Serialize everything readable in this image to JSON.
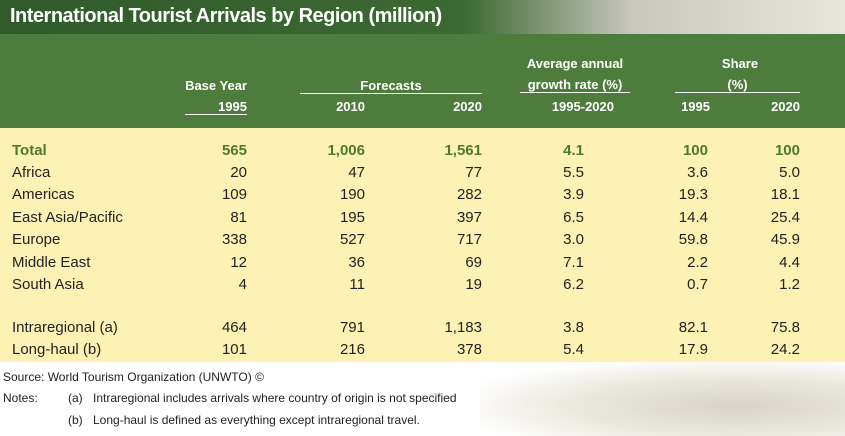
{
  "title": "International Tourist Arrivals by Region (million)",
  "header": {
    "base_year": "Base Year",
    "base_year_sub": "1995",
    "forecasts": "Forecasts",
    "forecast_years": [
      "2010",
      "2020"
    ],
    "growth": [
      "Average annual",
      "growth rate (%)"
    ],
    "growth_sub": "1995-2020",
    "share": [
      "Share",
      "(%)"
    ],
    "share_years": [
      "1995",
      "2020"
    ]
  },
  "table": {
    "total": [
      "Total",
      "565",
      "1,006",
      "1,561",
      "4.1",
      "100",
      "100"
    ],
    "regions": [
      [
        "Africa",
        "20",
        "47",
        "77",
        "5.5",
        "3.6",
        "5.0"
      ],
      [
        "Americas",
        "109",
        "190",
        "282",
        "3.9",
        "19.3",
        "18.1"
      ],
      [
        "East Asia/Pacific",
        "81",
        "195",
        "397",
        "6.5",
        "14.4",
        "25.4"
      ],
      [
        "Europe",
        "338",
        "527",
        "717",
        "3.0",
        "59.8",
        "45.9"
      ],
      [
        "Middle East",
        "12",
        "36",
        "69",
        "7.1",
        "2.2",
        "4.4"
      ],
      [
        "South Asia",
        "4",
        "11",
        "19",
        "6.2",
        "0.7",
        "1.2"
      ]
    ],
    "travel": [
      [
        "Intraregional (a)",
        "464",
        "791",
        "1,183",
        "3.8",
        "82.1",
        "75.8"
      ],
      [
        "Long-haul (b)",
        "101",
        "216",
        "378",
        "5.4",
        "17.9",
        "24.2"
      ]
    ]
  },
  "footer": {
    "source": "Source: World Tourism Organization (UNWTO) ©",
    "notes_label": "Notes:",
    "notes": [
      {
        "marker": "(a)",
        "text": "Intraregional includes arrivals where country of origin is not specified"
      },
      {
        "marker": "(b)",
        "text": "Long-haul is defined as everything except intraregional travel."
      }
    ]
  }
}
